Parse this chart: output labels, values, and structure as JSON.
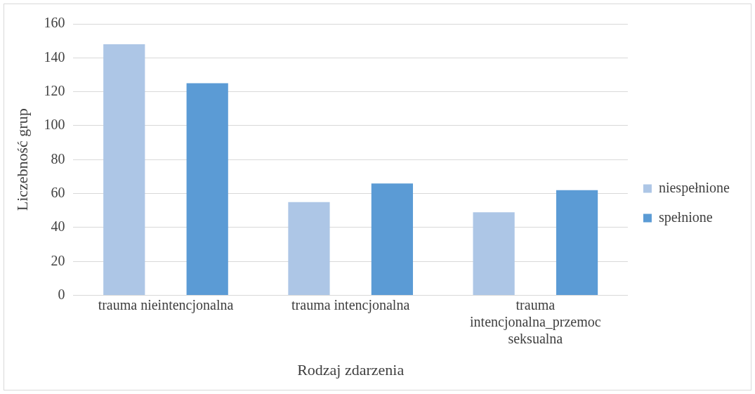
{
  "chart_data": {
    "type": "bar",
    "xlabel": "Rodzaj zdarzenia",
    "ylabel": "Liczebność grup",
    "categories": [
      "trauma nieintencjonalna",
      "trauma intencjonalna",
      "trauma intencjonalna_przemoc seksualna"
    ],
    "series": [
      {
        "name": "niespełnione",
        "color": "#adc6e6",
        "values": [
          148,
          55,
          49
        ]
      },
      {
        "name": "spełnione",
        "color": "#5b9bd5",
        "values": [
          125,
          66,
          62
        ]
      }
    ],
    "ylim": [
      0,
      160
    ],
    "yticks": [
      0,
      20,
      40,
      60,
      80,
      100,
      120,
      140,
      160
    ],
    "grid": "y",
    "legend": "right"
  }
}
